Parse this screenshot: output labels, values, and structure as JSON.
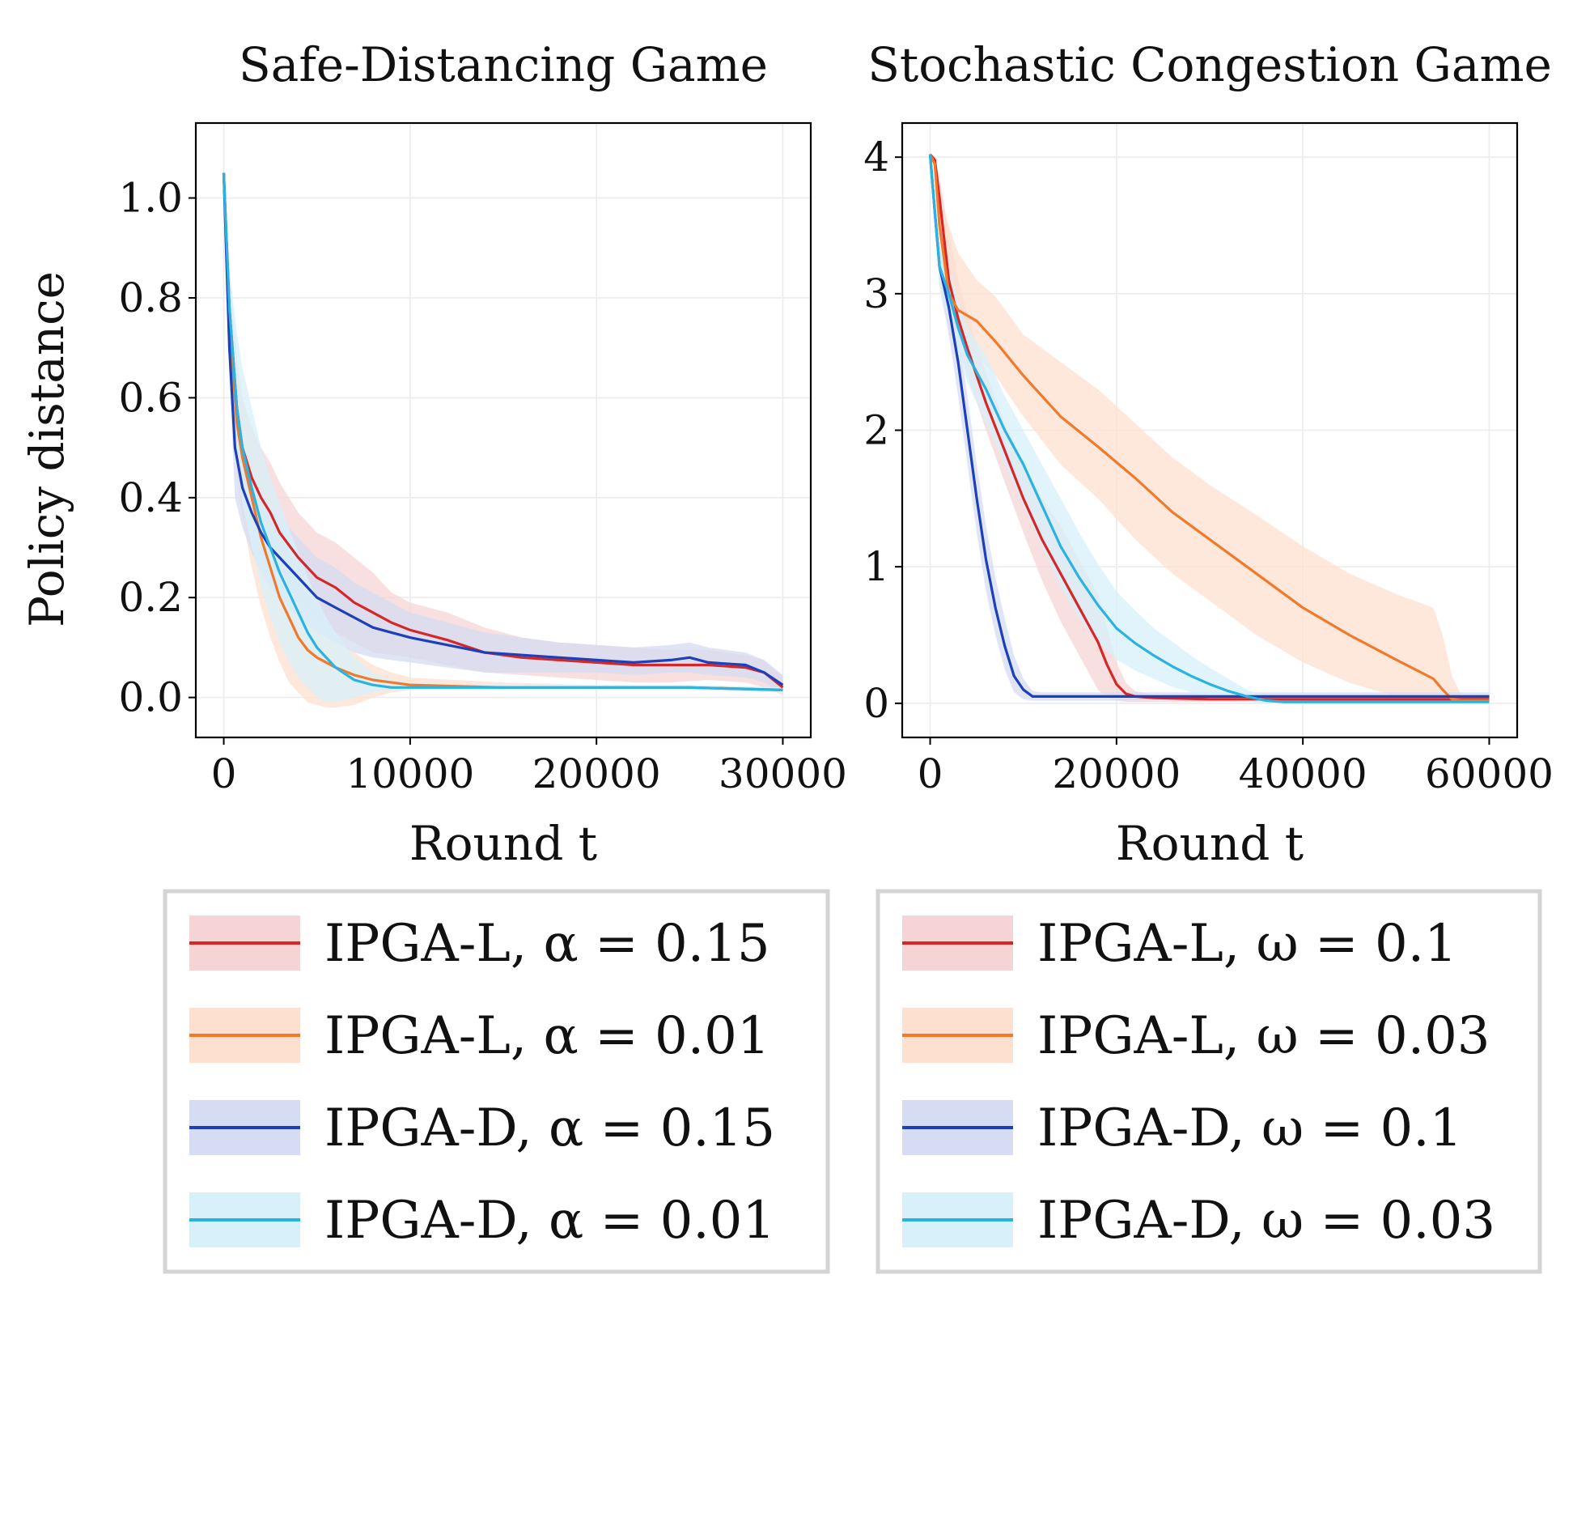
{
  "figure": {
    "ylabel": "Policy distance"
  },
  "legends": [
    [
      {
        "label": "IPGA-L, α = 0.15",
        "color": "#d62728",
        "band": "#f6d4d6"
      },
      {
        "label": "IPGA-L, α = 0.01",
        "color": "#f07a2a",
        "band": "#fde0cf"
      },
      {
        "label": "IPGA-D, α = 0.15",
        "color": "#1d3fb8",
        "band": "#d5dcf3"
      },
      {
        "label": "IPGA-D, α = 0.01",
        "color": "#2bb3e0",
        "band": "#d7f0fa"
      }
    ],
    [
      {
        "label": "IPGA-L, ω = 0.1",
        "color": "#d62728",
        "band": "#f6d4d6"
      },
      {
        "label": "IPGA-L, ω = 0.03",
        "color": "#f07a2a",
        "band": "#fde0cf"
      },
      {
        "label": "IPGA-D, ω = 0.1",
        "color": "#1d3fb8",
        "band": "#d5dcf3"
      },
      {
        "label": "IPGA-D, ω = 0.03",
        "color": "#2bb3e0",
        "band": "#d7f0fa"
      }
    ]
  ],
  "chart_data": [
    {
      "type": "line",
      "title": "Safe-Distancing Game",
      "xlabel": "Round t",
      "ylabel": "Policy distance",
      "xlim": [
        -1500,
        31500
      ],
      "ylim": [
        -0.08,
        1.15
      ],
      "xticks": [
        0,
        10000,
        20000,
        30000
      ],
      "xtick_labels": [
        "0",
        "10000",
        "20000",
        "30000"
      ],
      "yticks": [
        0.0,
        0.2,
        0.4,
        0.6,
        0.8,
        1.0
      ],
      "ytick_labels": [
        "0.0",
        "0.2",
        "0.4",
        "0.6",
        "0.8",
        "1.0"
      ],
      "grid": true,
      "series": [
        {
          "name": "IPGA-L, α = 0.15",
          "color": "#d62728",
          "x": [
            0,
            300,
            700,
            1000,
            1500,
            2000,
            2500,
            3000,
            4000,
            5000,
            6000,
            7000,
            8000,
            9000,
            10000,
            12000,
            14000,
            16000,
            18000,
            20000,
            22000,
            24000,
            26000,
            28000,
            29000,
            30000
          ],
          "y": [
            1.05,
            0.78,
            0.58,
            0.5,
            0.44,
            0.4,
            0.37,
            0.33,
            0.28,
            0.24,
            0.22,
            0.19,
            0.17,
            0.15,
            0.135,
            0.115,
            0.09,
            0.08,
            0.075,
            0.07,
            0.065,
            0.065,
            0.065,
            0.06,
            0.05,
            0.02
          ],
          "lower": [
            1.05,
            0.7,
            0.46,
            0.4,
            0.35,
            0.31,
            0.28,
            0.25,
            0.2,
            0.16,
            0.13,
            0.11,
            0.09,
            0.085,
            0.08,
            0.065,
            0.05,
            0.045,
            0.04,
            0.035,
            0.03,
            0.03,
            0.035,
            0.03,
            0.02,
            0.005
          ],
          "upper": [
            1.05,
            0.86,
            0.68,
            0.6,
            0.54,
            0.5,
            0.47,
            0.43,
            0.37,
            0.33,
            0.31,
            0.28,
            0.25,
            0.21,
            0.19,
            0.17,
            0.14,
            0.12,
            0.11,
            0.105,
            0.1,
            0.095,
            0.095,
            0.085,
            0.075,
            0.04
          ]
        },
        {
          "name": "IPGA-L, α = 0.01",
          "color": "#f07a2a",
          "x": [
            0,
            300,
            700,
            1000,
            1500,
            2000,
            2500,
            3000,
            3500,
            4000,
            4500,
            5000,
            5500,
            6000,
            7000,
            8000,
            9000,
            10000,
            15000,
            20000,
            25000,
            30000
          ],
          "y": [
            1.05,
            0.75,
            0.55,
            0.48,
            0.4,
            0.32,
            0.26,
            0.2,
            0.16,
            0.12,
            0.095,
            0.08,
            0.07,
            0.06,
            0.045,
            0.035,
            0.03,
            0.025,
            0.02,
            0.02,
            0.02,
            0.015
          ],
          "lower": [
            1.05,
            0.68,
            0.44,
            0.36,
            0.26,
            0.18,
            0.12,
            0.07,
            0.03,
            0.01,
            -0.01,
            -0.015,
            -0.02,
            -0.02,
            -0.015,
            0.0,
            0.01,
            0.015,
            0.015,
            0.015,
            0.015,
            0.01
          ],
          "upper": [
            1.05,
            0.82,
            0.66,
            0.6,
            0.54,
            0.46,
            0.4,
            0.33,
            0.29,
            0.24,
            0.2,
            0.17,
            0.14,
            0.12,
            0.09,
            0.065,
            0.05,
            0.04,
            0.03,
            0.025,
            0.025,
            0.02
          ]
        },
        {
          "name": "IPGA-D, α = 0.15",
          "color": "#1d3fb8",
          "x": [
            0,
            300,
            600,
            1000,
            1500,
            2000,
            2500,
            3000,
            4000,
            5000,
            6000,
            7000,
            8000,
            9000,
            10000,
            12000,
            14000,
            16000,
            18000,
            20000,
            22000,
            24000,
            25000,
            26000,
            28000,
            29000,
            30000
          ],
          "y": [
            1.05,
            0.7,
            0.5,
            0.42,
            0.37,
            0.33,
            0.3,
            0.28,
            0.24,
            0.2,
            0.18,
            0.16,
            0.14,
            0.13,
            0.12,
            0.105,
            0.09,
            0.085,
            0.08,
            0.075,
            0.07,
            0.075,
            0.08,
            0.07,
            0.065,
            0.05,
            0.025
          ],
          "lower": [
            1.05,
            0.64,
            0.4,
            0.34,
            0.29,
            0.25,
            0.22,
            0.2,
            0.16,
            0.13,
            0.11,
            0.09,
            0.08,
            0.075,
            0.07,
            0.06,
            0.05,
            0.05,
            0.05,
            0.05,
            0.045,
            0.05,
            0.05,
            0.045,
            0.04,
            0.03,
            0.01
          ],
          "upper": [
            1.05,
            0.76,
            0.6,
            0.5,
            0.45,
            0.41,
            0.38,
            0.36,
            0.32,
            0.28,
            0.26,
            0.23,
            0.21,
            0.19,
            0.17,
            0.15,
            0.13,
            0.12,
            0.11,
            0.105,
            0.1,
            0.105,
            0.11,
            0.1,
            0.09,
            0.075,
            0.045
          ]
        },
        {
          "name": "IPGA-D, α = 0.01",
          "color": "#2bb3e0",
          "x": [
            0,
            300,
            700,
            1000,
            1500,
            2000,
            2500,
            3000,
            3500,
            4000,
            4500,
            5000,
            5500,
            6000,
            7000,
            8000,
            9000,
            10000,
            15000,
            20000,
            25000,
            30000
          ],
          "y": [
            1.05,
            0.78,
            0.58,
            0.5,
            0.42,
            0.35,
            0.3,
            0.25,
            0.21,
            0.17,
            0.13,
            0.1,
            0.08,
            0.06,
            0.035,
            0.025,
            0.02,
            0.02,
            0.02,
            0.02,
            0.02,
            0.015
          ],
          "lower": [
            1.05,
            0.7,
            0.48,
            0.39,
            0.3,
            0.22,
            0.16,
            0.11,
            0.07,
            0.04,
            0.02,
            0.0,
            -0.01,
            -0.01,
            0.0,
            0.01,
            0.015,
            0.015,
            0.015,
            0.015,
            0.015,
            0.01
          ],
          "upper": [
            1.05,
            0.86,
            0.73,
            0.66,
            0.58,
            0.5,
            0.44,
            0.39,
            0.34,
            0.29,
            0.24,
            0.2,
            0.16,
            0.13,
            0.08,
            0.05,
            0.035,
            0.03,
            0.025,
            0.025,
            0.025,
            0.02
          ]
        }
      ]
    },
    {
      "type": "line",
      "title": "Stochastic Congestion Game",
      "xlabel": "Round t",
      "ylabel": "",
      "xlim": [
        -3000,
        63000
      ],
      "ylim": [
        -0.25,
        4.25
      ],
      "xticks": [
        0,
        20000,
        40000,
        60000
      ],
      "xtick_labels": [
        "0",
        "20000",
        "40000",
        "60000"
      ],
      "yticks": [
        0,
        1,
        2,
        3,
        4
      ],
      "ytick_labels": [
        "0",
        "1",
        "2",
        "3",
        "4"
      ],
      "grid": true,
      "series": [
        {
          "name": "IPGA-L, ω = 0.1",
          "color": "#d62728",
          "x": [
            0,
            500,
            1000,
            2000,
            3000,
            4000,
            6000,
            8000,
            10000,
            12000,
            14000,
            16000,
            18000,
            19000,
            20000,
            21000,
            22000,
            24000,
            30000,
            40000,
            50000,
            60000
          ],
          "y": [
            4.02,
            3.98,
            3.7,
            3.1,
            2.82,
            2.6,
            2.2,
            1.85,
            1.5,
            1.2,
            0.95,
            0.7,
            0.45,
            0.28,
            0.14,
            0.07,
            0.05,
            0.04,
            0.03,
            0.03,
            0.03,
            0.03
          ],
          "lower": [
            4.02,
            3.95,
            3.55,
            2.9,
            2.6,
            2.4,
            2.0,
            1.62,
            1.25,
            0.9,
            0.6,
            0.35,
            0.1,
            0.04,
            0.02,
            0.01,
            0.01,
            0.01,
            0.01,
            0.01,
            0.01,
            0.01
          ],
          "upper": [
            4.02,
            4.0,
            3.85,
            3.45,
            3.1,
            2.85,
            2.42,
            2.05,
            1.75,
            1.5,
            1.3,
            1.05,
            0.8,
            0.55,
            0.3,
            0.15,
            0.09,
            0.06,
            0.05,
            0.05,
            0.05,
            0.05
          ]
        },
        {
          "name": "IPGA-L, ω = 0.03",
          "color": "#f07a2a",
          "x": [
            0,
            500,
            1000,
            2000,
            3000,
            5000,
            7000,
            10000,
            14000,
            18000,
            22000,
            26000,
            30000,
            35000,
            40000,
            45000,
            50000,
            54000,
            55000,
            56000,
            57000,
            60000
          ],
          "y": [
            4.02,
            3.95,
            3.5,
            3.0,
            2.88,
            2.8,
            2.65,
            2.4,
            2.1,
            1.88,
            1.65,
            1.4,
            1.2,
            0.95,
            0.7,
            0.5,
            0.32,
            0.18,
            0.1,
            0.03,
            0.02,
            0.02
          ],
          "lower": [
            4.02,
            3.9,
            3.3,
            2.7,
            2.62,
            2.55,
            2.4,
            2.1,
            1.75,
            1.5,
            1.2,
            0.95,
            0.75,
            0.5,
            0.3,
            0.15,
            0.05,
            0.01,
            0.01,
            0.01,
            0.01,
            0.01
          ],
          "upper": [
            4.02,
            4.0,
            3.7,
            3.5,
            3.3,
            3.1,
            2.98,
            2.7,
            2.5,
            2.3,
            2.05,
            1.8,
            1.6,
            1.38,
            1.15,
            0.95,
            0.8,
            0.7,
            0.5,
            0.2,
            0.06,
            0.04
          ]
        },
        {
          "name": "IPGA-D, ω = 0.1",
          "color": "#1d3fb8",
          "x": [
            0,
            500,
            1000,
            2000,
            3000,
            4000,
            5000,
            6000,
            7000,
            8000,
            9000,
            10000,
            11000,
            12000,
            15000,
            20000,
            30000,
            40000,
            50000,
            60000
          ],
          "y": [
            4.02,
            3.6,
            3.2,
            2.9,
            2.5,
            2.0,
            1.5,
            1.05,
            0.7,
            0.42,
            0.2,
            0.1,
            0.05,
            0.05,
            0.05,
            0.05,
            0.05,
            0.05,
            0.05,
            0.05
          ],
          "lower": [
            4.02,
            3.5,
            3.05,
            2.7,
            2.25,
            1.75,
            1.25,
            0.82,
            0.5,
            0.25,
            0.08,
            0.03,
            0.02,
            0.02,
            0.02,
            0.02,
            0.02,
            0.02,
            0.02,
            0.02
          ],
          "upper": [
            4.02,
            3.7,
            3.35,
            3.05,
            2.72,
            2.25,
            1.75,
            1.3,
            0.92,
            0.62,
            0.35,
            0.18,
            0.09,
            0.08,
            0.08,
            0.08,
            0.08,
            0.08,
            0.08,
            0.08
          ]
        },
        {
          "name": "IPGA-D, ω = 0.03",
          "color": "#2bb3e0",
          "x": [
            0,
            500,
            1000,
            2000,
            3000,
            4000,
            6000,
            8000,
            10000,
            12000,
            14000,
            16000,
            18000,
            20000,
            22000,
            24000,
            26000,
            28000,
            30000,
            32000,
            34000,
            36000,
            38000,
            40000,
            50000,
            60000
          ],
          "y": [
            4.02,
            3.6,
            3.2,
            3.0,
            2.75,
            2.55,
            2.3,
            2.0,
            1.75,
            1.45,
            1.15,
            0.92,
            0.72,
            0.55,
            0.44,
            0.35,
            0.27,
            0.2,
            0.14,
            0.09,
            0.05,
            0.02,
            0.01,
            0.01,
            0.01,
            0.01
          ],
          "lower": [
            4.02,
            3.5,
            3.05,
            2.8,
            2.55,
            2.35,
            2.05,
            1.75,
            1.45,
            1.15,
            0.85,
            0.62,
            0.45,
            0.32,
            0.24,
            0.18,
            0.12,
            0.08,
            0.05,
            0.02,
            0.01,
            0.0,
            0.0,
            0.0,
            0.0,
            0.0
          ],
          "upper": [
            4.02,
            3.7,
            3.35,
            3.2,
            2.95,
            2.75,
            2.55,
            2.25,
            2.0,
            1.75,
            1.5,
            1.25,
            1.02,
            0.82,
            0.68,
            0.55,
            0.45,
            0.35,
            0.26,
            0.18,
            0.1,
            0.05,
            0.03,
            0.02,
            0.02,
            0.02
          ]
        }
      ]
    }
  ]
}
